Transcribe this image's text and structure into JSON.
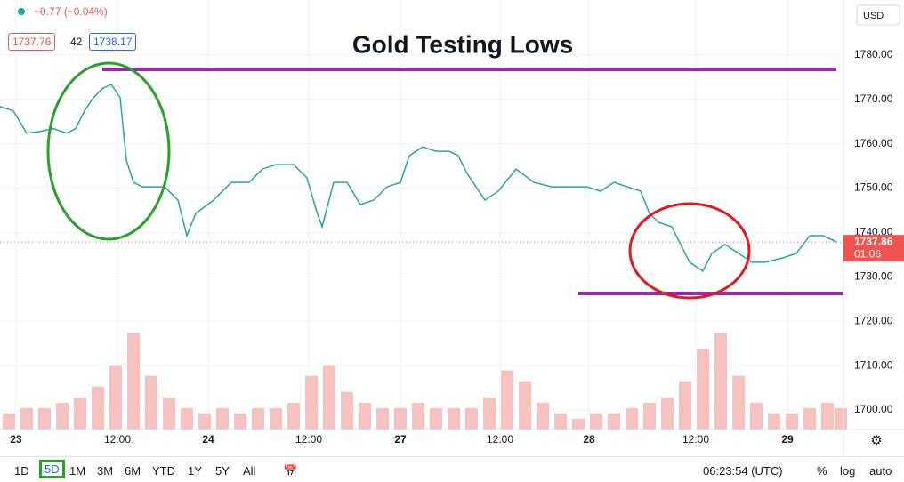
{
  "chart_data": {
    "type": "line",
    "title": "Gold Testing Lows",
    "series": [
      {
        "name": "Gold",
        "color": "#26a69a",
        "x": [
          0,
          1.5,
          3,
          4.5,
          6,
          7.5,
          8.5,
          9.5,
          10.5,
          11.5,
          12.5,
          13.5,
          14.2,
          15,
          16,
          17,
          18.5,
          20,
          21,
          22,
          24,
          26,
          28,
          29.5,
          31,
          33,
          34.5,
          35.5,
          36.2,
          37.5,
          39,
          40.5,
          42,
          43.5,
          45,
          46,
          47.5,
          49,
          50.5,
          51.5,
          52.5,
          54.5,
          56,
          58,
          60,
          62,
          64,
          66,
          67.5,
          69,
          70.5,
          72,
          73,
          74,
          75.5,
          76.5,
          77.5,
          79,
          80,
          81.5,
          83,
          84.5,
          86,
          88,
          89.5,
          91,
          92.5,
          94
        ],
        "values": [
          1768.4,
          1767.4,
          1762.4,
          1762.8,
          1763.4,
          1762.4,
          1763.4,
          1767.4,
          1770.4,
          1772.4,
          1773.4,
          1770.4,
          1756.3,
          1751.3,
          1750.3,
          1750.3,
          1750.3,
          1747.3,
          1739.3,
          1744.3,
          1747.3,
          1751.3,
          1751.3,
          1754.3,
          1755.3,
          1755.3,
          1752.3,
          1745.3,
          1741.3,
          1751.3,
          1751.3,
          1746.3,
          1747.3,
          1750.3,
          1751.3,
          1757.3,
          1759.3,
          1758.3,
          1758.3,
          1757.3,
          1753.3,
          1747.3,
          1749.3,
          1754.3,
          1751.3,
          1750.3,
          1750.3,
          1750.3,
          1749.3,
          1751.3,
          1750.3,
          1749.3,
          1744.3,
          1742.3,
          1741.3,
          1737.3,
          1733.3,
          1731.3,
          1735.3,
          1737.3,
          1735.3,
          1733.3,
          1733.3,
          1734.3,
          1735.3,
          1739.3,
          1739.3,
          1737.9
        ]
      },
      {
        "name": "Volume",
        "color": "#f3b3b0",
        "axis": "y2",
        "x": [
          1,
          3,
          5,
          7,
          9,
          11,
          13,
          15,
          17,
          19,
          21,
          23,
          25,
          27,
          29,
          31,
          33,
          35,
          37,
          39,
          41,
          43,
          45,
          47,
          49,
          51,
          53,
          55,
          57,
          59,
          61,
          63,
          65,
          67,
          69,
          71,
          73,
          75,
          77,
          79,
          81,
          83,
          85,
          87,
          89,
          91,
          93,
          94.5
        ],
        "values": [
          15,
          20,
          20,
          25,
          30,
          40,
          60,
          90,
          50,
          30,
          20,
          15,
          20,
          15,
          20,
          20,
          25,
          50,
          60,
          35,
          25,
          20,
          20,
          25,
          20,
          20,
          20,
          30,
          55,
          45,
          25,
          15,
          10,
          15,
          15,
          20,
          25,
          30,
          45,
          75,
          90,
          50,
          25,
          15,
          15,
          20,
          25,
          20
        ]
      }
    ],
    "xlim": [
      0,
      94.8
    ],
    "xticks": [
      {
        "value": 1.8,
        "label": "23"
      },
      {
        "value": 13.2,
        "label": "12:00"
      },
      {
        "value": 23.4,
        "label": "24"
      },
      {
        "value": 34.7,
        "label": "12:00"
      },
      {
        "value": 45,
        "label": "27"
      },
      {
        "value": 56.2,
        "label": "12:00"
      },
      {
        "value": 66.2,
        "label": "28"
      },
      {
        "value": 78.2,
        "label": "12:00"
      },
      {
        "value": 88.5,
        "label": "29"
      }
    ],
    "ylim": [
      1695.6,
      1792.4
    ],
    "yticks": [
      {
        "value": 1700,
        "label": "1700.00"
      },
      {
        "value": 1710,
        "label": "1710.00"
      },
      {
        "value": 1720,
        "label": "1720.00"
      },
      {
        "value": 1730,
        "label": "1730.00"
      },
      {
        "value": 1740,
        "label": "1740.00"
      },
      {
        "value": 1750,
        "label": "1750.00"
      },
      {
        "value": 1760,
        "label": "1760.00"
      },
      {
        "value": 1770,
        "label": "1770.00"
      },
      {
        "value": 1780,
        "label": "1780.00"
      }
    ],
    "y2lim": [
      0,
      400
    ],
    "grid": true,
    "last_price": 1737.86,
    "countdown": "01:06",
    "currency": "USD"
  },
  "header": {
    "change": "−0.77 (−0.04%)",
    "bid": "1737.76",
    "spread": "42",
    "ask": "1738.17"
  },
  "toolbar": {
    "ranges": [
      "1D",
      "5D",
      "1M",
      "3M",
      "6M",
      "YTD",
      "1Y",
      "5Y",
      "All"
    ],
    "time": "06:23:54 (UTC)",
    "percent": "%",
    "log": "log",
    "auto": "auto"
  }
}
